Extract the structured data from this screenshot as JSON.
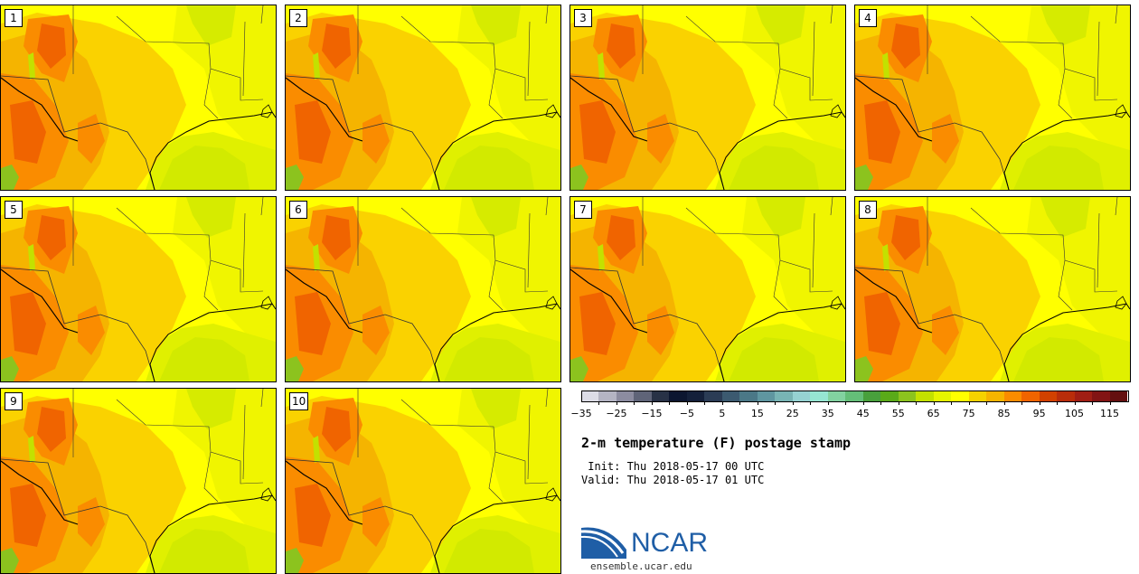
{
  "panels": [
    {
      "label": "1"
    },
    {
      "label": "2"
    },
    {
      "label": "3"
    },
    {
      "label": "4"
    },
    {
      "label": "5"
    },
    {
      "label": "6"
    },
    {
      "label": "7"
    },
    {
      "label": "8"
    },
    {
      "label": "9"
    },
    {
      "label": "10"
    }
  ],
  "colorbar": {
    "colors": [
      "#dcdce6",
      "#b4b4c3",
      "#8c8ca0",
      "#5f6478",
      "#283246",
      "#0c1630",
      "#14203a",
      "#2b3c55",
      "#3c5a70",
      "#4b7887",
      "#5f96a0",
      "#78b4b4",
      "#96d2d2",
      "#96e6d2",
      "#82d2a0",
      "#64be78",
      "#48a03c",
      "#5aaa19",
      "#8cc31e",
      "#c3e100",
      "#e6f500",
      "#ffff00",
      "#f5d200",
      "#f5b400",
      "#fa8c00",
      "#f06400",
      "#d24100",
      "#b92d0a",
      "#a01e14",
      "#821414",
      "#641010"
    ],
    "tick_labels": [
      "−35",
      "−25",
      "−15",
      "−5",
      "5",
      "15",
      "25",
      "35",
      "45",
      "55",
      "65",
      "75",
      "85",
      "95",
      "105",
      "115"
    ]
  },
  "title": "2-m temperature (F) postage stamp",
  "init_text": " Init: Thu 2018-05-17 00 UTC",
  "valid_text": "Valid: Thu 2018-05-17 01 UTC",
  "logo": {
    "name": "NCAR",
    "url": "ensemble.ucar.edu"
  }
}
